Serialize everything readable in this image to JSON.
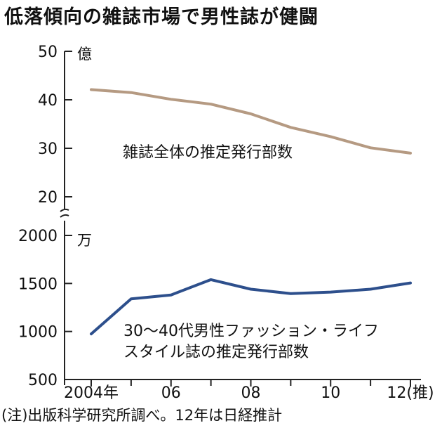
{
  "title": "低落傾向の雑誌市場で男性誌が健闘",
  "note": "(注)出版科学研究所調べ。12年は日経推計",
  "colors": {
    "total": "#b59a82",
    "mens": "#2d4f8c",
    "axis": "#222222"
  },
  "chart_data": [
    {
      "type": "line",
      "name": "upper",
      "unit": "億",
      "ylim": [
        20,
        50
      ],
      "yticks": [
        "20",
        "30",
        "40",
        "50"
      ],
      "series": [
        {
          "name": "雑誌全体の推定発行部数",
          "x": [
            2004,
            2005,
            2006,
            2007,
            2008,
            2009,
            2010,
            2011,
            2012
          ],
          "values": [
            42.1,
            41.5,
            40.1,
            39.1,
            37.1,
            34.3,
            32.4,
            30.1,
            29.0
          ]
        }
      ]
    },
    {
      "type": "line",
      "name": "lower",
      "unit": "万",
      "ylim": [
        500,
        2000
      ],
      "yticks": [
        "500",
        "1000",
        "1500",
        "2000"
      ],
      "series": [
        {
          "name_lines": [
            "30～40代男性ファッション・ライフ",
            "スタイル誌の推定発行部数"
          ],
          "x": [
            2004,
            2005,
            2006,
            2007,
            2008,
            2009,
            2010,
            2011,
            2012
          ],
          "values": [
            975,
            1340,
            1380,
            1540,
            1440,
            1395,
            1410,
            1440,
            1505
          ]
        }
      ]
    }
  ],
  "x_axis": {
    "ticks": [
      {
        "year": 2004,
        "label": "2004年"
      },
      {
        "year": 2006,
        "label": "06"
      },
      {
        "year": 2008,
        "label": "08"
      },
      {
        "year": 2010,
        "label": "10"
      },
      {
        "year": 2012,
        "label": "12(推)"
      }
    ],
    "minor_years": [
      2005,
      2007,
      2009,
      2011
    ]
  }
}
